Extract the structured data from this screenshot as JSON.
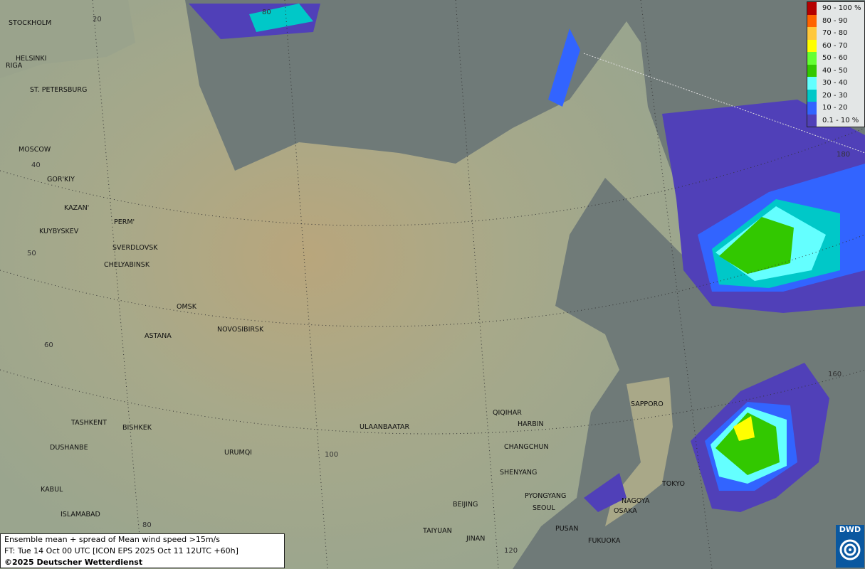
{
  "caption": {
    "line1": "Ensemble mean + spread of Mean wind speed >15m/s",
    "line2": "FT: Tue 14 Oct 00 UTC [ICON EPS 2025 Oct 11 12UTC +60h]",
    "line3": "©2025 Deutscher Wetterdienst"
  },
  "logo": {
    "text": "DWD"
  },
  "legend": [
    {
      "label": "90 - 100 %",
      "color": "#b50000"
    },
    {
      "label": "80 - 90",
      "color": "#ff6400"
    },
    {
      "label": "70 - 80",
      "color": "#ffc83c"
    },
    {
      "label": "60 - 70",
      "color": "#ffff00"
    },
    {
      "label": "50 - 60",
      "color": "#64ff32"
    },
    {
      "label": "40 - 50",
      "color": "#32c800"
    },
    {
      "label": "30 - 40",
      "color": "#64ffff"
    },
    {
      "label": "20 - 30",
      "color": "#00c8c8"
    },
    {
      "label": "10 - 20",
      "color": "#3264ff"
    },
    {
      "label": "0.1 - 10 %",
      "color": "#5040b8"
    }
  ],
  "cities": [
    "STOCKHOLM",
    "HELSINKI",
    "RIGA",
    "ST. PETERSBURG",
    "MOSCOW",
    "GOR'KIY",
    "KAZAN'",
    "PERM'",
    "KUYBYSKEV",
    "SVERDLOVSK",
    "CHELYABINSK",
    "OMSK",
    "NOVOSIBIRSK",
    "ASTANA",
    "TASHKENT",
    "BISHKEK",
    "DUSHANBE",
    "URUMQI",
    "KABUL",
    "ISLAMABAD",
    "ULAANBAATAR",
    "QIQIHAR",
    "HARBIN",
    "CHANGCHUN",
    "SHENYANG",
    "PYONGYANG",
    "SEOUL",
    "BEIJING",
    "TAIYUAN",
    "JINAN",
    "PUSAN",
    "FUKUOKA",
    "NAGOYA",
    "OSAKA",
    "TOKYO",
    "SAPPORO"
  ],
  "grid_labels": [
    "20",
    "80",
    "40",
    "50",
    "60",
    "100",
    "80",
    "120",
    "160",
    "180"
  ]
}
